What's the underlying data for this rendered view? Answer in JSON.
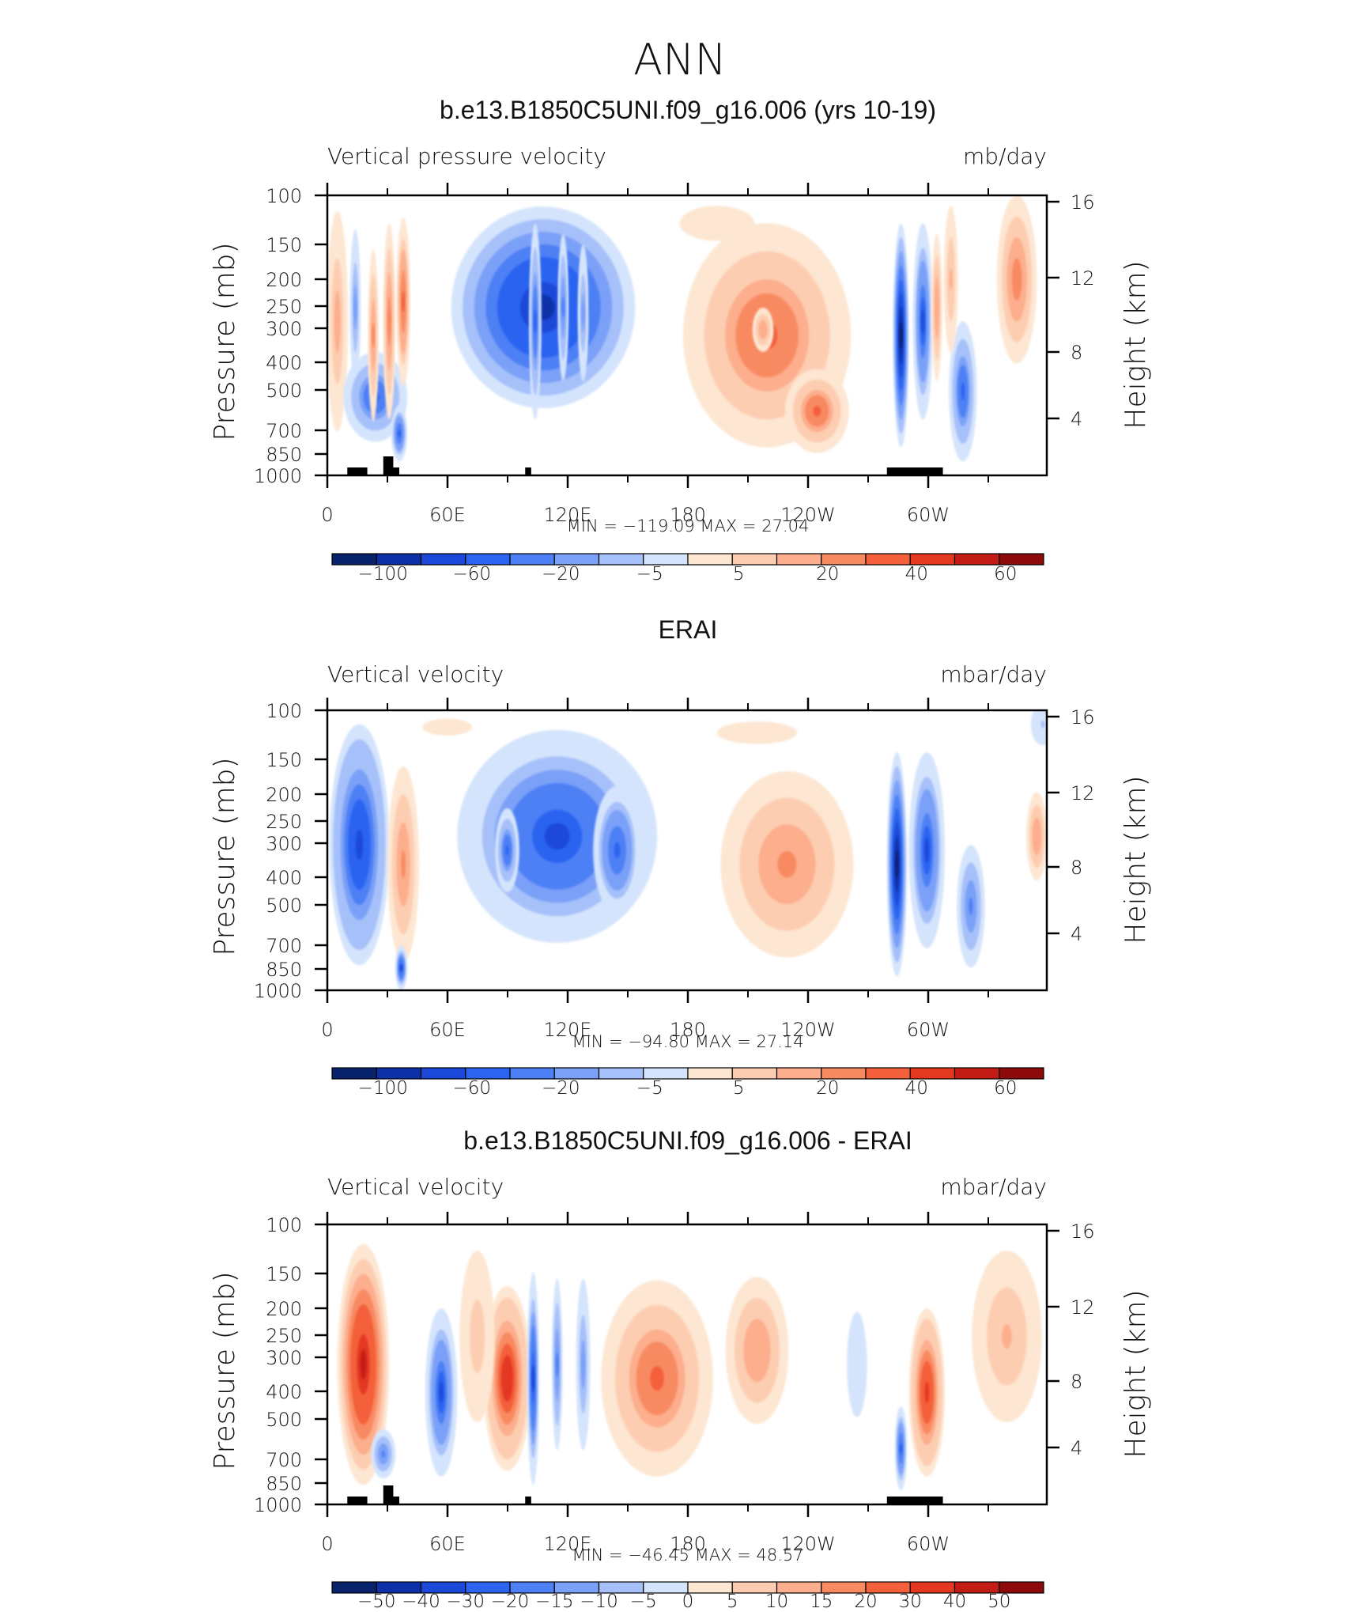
{
  "figure": {
    "title": "ANN"
  },
  "chart_data": [
    {
      "type": "heatmap",
      "title": "b.e13.B1850C5UNI.f09_g16.006 (yrs 10-19)",
      "left_label": "Vertical pressure velocity",
      "right_label": "mb/day",
      "ylabel": "Pressure (mb)",
      "ylabel_right": "Height (km)",
      "x_ticks": [
        "0",
        "60E",
        "120E",
        "180",
        "120W",
        "60W"
      ],
      "y_ticks": [
        "100",
        "150",
        "200",
        "250",
        "300",
        "400",
        "500",
        "700",
        "850",
        "1000"
      ],
      "y_ticks_right": [
        "16",
        "12",
        "8",
        "4"
      ],
      "stats": {
        "min_label": "MIN",
        "min": "−119.09",
        "max_label": "MAX",
        "max": "27.04"
      },
      "colorbar_levels": [
        "−100",
        "−60",
        "−20",
        "−5",
        "5",
        "20",
        "40",
        "60"
      ],
      "color_scale": "diverging-blue-red",
      "land_mask": [
        [
          10,
          20
        ],
        [
          28,
          36
        ],
        [
          99,
          102
        ],
        [
          280,
          308
        ]
      ],
      "features": [
        {
          "lon": 5,
          "lev": 0.45,
          "w": 6,
          "h": 0.45,
          "v": 0.35
        },
        {
          "lon": 14,
          "lev": 0.4,
          "w": 3,
          "h": 0.32,
          "v": -0.35
        },
        {
          "lon": 24,
          "lev": 0.72,
          "w": 16,
          "h": 0.16,
          "v": -0.55
        },
        {
          "lon": 23,
          "lev": 0.5,
          "w": 3,
          "h": 0.35,
          "v": 0.45
        },
        {
          "lon": 31,
          "lev": 0.45,
          "w": 3,
          "h": 0.35,
          "v": 0.5
        },
        {
          "lon": 38,
          "lev": 0.38,
          "w": 3.5,
          "h": 0.3,
          "v": 0.6
        },
        {
          "lon": 36,
          "lev": 0.85,
          "w": 4,
          "h": 0.1,
          "v": -0.6
        },
        {
          "lon": 108,
          "lev": 0.4,
          "w": 46,
          "h": 0.36,
          "v": -0.85
        },
        {
          "lon": 104,
          "lev": 0.45,
          "w": 3,
          "h": 0.35,
          "v": -0.55
        },
        {
          "lon": 118,
          "lev": 0.4,
          "w": 3,
          "h": 0.3,
          "v": -0.45
        },
        {
          "lon": 128,
          "lev": 0.42,
          "w": 3,
          "h": 0.28,
          "v": -0.35
        },
        {
          "lon": 195,
          "lev": 0.1,
          "w": 30,
          "h": 0.1,
          "v": 0.12
        },
        {
          "lon": 220,
          "lev": 0.5,
          "w": 42,
          "h": 0.4,
          "v": 0.55
        },
        {
          "lon": 218,
          "lev": 0.48,
          "w": 6,
          "h": 0.09,
          "v": 0.4
        },
        {
          "lon": 245,
          "lev": 0.77,
          "w": 16,
          "h": 0.15,
          "v": 0.55
        },
        {
          "lon": 287,
          "lev": 0.5,
          "w": 4,
          "h": 0.4,
          "v": -0.9
        },
        {
          "lon": 298,
          "lev": 0.45,
          "w": 5,
          "h": 0.35,
          "v": -0.65
        },
        {
          "lon": 305,
          "lev": 0.4,
          "w": 3,
          "h": 0.3,
          "v": 0.4
        },
        {
          "lon": 318,
          "lev": 0.7,
          "w": 7,
          "h": 0.25,
          "v": -0.55
        },
        {
          "lon": 345,
          "lev": 0.3,
          "w": 10,
          "h": 0.3,
          "v": 0.5
        },
        {
          "lon": 312,
          "lev": 0.3,
          "w": 4,
          "h": 0.3,
          "v": 0.3
        }
      ]
    },
    {
      "type": "heatmap",
      "title": "ERAI",
      "left_label": "Vertical velocity",
      "right_label": "mbar/day",
      "ylabel": "Pressure (mb)",
      "ylabel_right": "Height (km)",
      "x_ticks": [
        "0",
        "60E",
        "120E",
        "180",
        "120W",
        "60W"
      ],
      "y_ticks": [
        "100",
        "150",
        "200",
        "250",
        "300",
        "400",
        "500",
        "700",
        "850",
        "1000"
      ],
      "y_ticks_right": [
        "16",
        "12",
        "8",
        "4"
      ],
      "stats": {
        "min_label": "MIN",
        "min": "−94.80",
        "max_label": "MAX",
        "max": "27.14"
      },
      "colorbar_levels": [
        "−100",
        "−60",
        "−20",
        "−5",
        "5",
        "20",
        "40",
        "60"
      ],
      "color_scale": "diverging-blue-red",
      "land_mask": [],
      "features": [
        {
          "lon": 16,
          "lev": 0.48,
          "w": 15,
          "h": 0.43,
          "v": -0.72
        },
        {
          "lon": 38,
          "lev": 0.55,
          "w": 9,
          "h": 0.4,
          "v": 0.45
        },
        {
          "lon": 37,
          "lev": 0.92,
          "w": 3,
          "h": 0.08,
          "v": -0.7
        },
        {
          "lon": 115,
          "lev": 0.45,
          "w": 50,
          "h": 0.38,
          "v": -0.7
        },
        {
          "lon": 90,
          "lev": 0.5,
          "w": 6,
          "h": 0.15,
          "v": -0.55
        },
        {
          "lon": 145,
          "lev": 0.5,
          "w": 12,
          "h": 0.23,
          "v": -0.6
        },
        {
          "lon": 230,
          "lev": 0.55,
          "w": 38,
          "h": 0.38,
          "v": 0.45
        },
        {
          "lon": 285,
          "lev": 0.55,
          "w": 5,
          "h": 0.4,
          "v": -0.9
        },
        {
          "lon": 300,
          "lev": 0.5,
          "w": 9,
          "h": 0.35,
          "v": -0.65
        },
        {
          "lon": 322,
          "lev": 0.7,
          "w": 8,
          "h": 0.25,
          "v": -0.45
        },
        {
          "lon": 355,
          "lev": 0.45,
          "w": 6,
          "h": 0.18,
          "v": 0.4
        },
        {
          "lon": 358,
          "lev": 0.05,
          "w": 8,
          "h": 0.1,
          "v": -0.2
        },
        {
          "lon": 215,
          "lev": 0.08,
          "w": 40,
          "h": 0.08,
          "v": 0.1
        },
        {
          "lon": 60,
          "lev": 0.06,
          "w": 25,
          "h": 0.06,
          "v": 0.1
        }
      ]
    },
    {
      "type": "heatmap",
      "title": "b.e13.B1850C5UNI.f09_g16.006 - ERAI",
      "left_label": "Vertical velocity",
      "right_label": "mbar/day",
      "ylabel": "Pressure (mb)",
      "ylabel_right": "Height (km)",
      "x_ticks": [
        "0",
        "60E",
        "120E",
        "180",
        "120W",
        "60W"
      ],
      "y_ticks": [
        "100",
        "150",
        "200",
        "250",
        "300",
        "400",
        "500",
        "700",
        "850",
        "1000"
      ],
      "y_ticks_right": [
        "16",
        "12",
        "8",
        "4"
      ],
      "stats": {
        "min_label": "MIN",
        "min": "−46.45",
        "max_label": "MAX",
        "max": "48.57"
      },
      "colorbar_levels": [
        "−50",
        "−40",
        "−30",
        "−20",
        "−15",
        "−10",
        "−5",
        "0",
        "5",
        "10",
        "15",
        "20",
        "30",
        "40",
        "50"
      ],
      "color_scale": "diverging-blue-red",
      "land_mask": [
        [
          10,
          20
        ],
        [
          28,
          36
        ],
        [
          99,
          102
        ],
        [
          280,
          308
        ]
      ],
      "features": [
        {
          "lon": 18,
          "lev": 0.5,
          "w": 13,
          "h": 0.43,
          "v": 0.85
        },
        {
          "lon": 28,
          "lev": 0.82,
          "w": 7,
          "h": 0.1,
          "v": -0.45
        },
        {
          "lon": 57,
          "lev": 0.6,
          "w": 8,
          "h": 0.3,
          "v": -0.65
        },
        {
          "lon": 90,
          "lev": 0.55,
          "w": 12,
          "h": 0.33,
          "v": 0.75
        },
        {
          "lon": 103,
          "lev": 0.55,
          "w": 3,
          "h": 0.38,
          "v": -0.7
        },
        {
          "lon": 115,
          "lev": 0.5,
          "w": 3,
          "h": 0.35,
          "v": -0.45
        },
        {
          "lon": 128,
          "lev": 0.5,
          "w": 4,
          "h": 0.35,
          "v": -0.35
        },
        {
          "lon": 165,
          "lev": 0.55,
          "w": 28,
          "h": 0.35,
          "v": 0.55
        },
        {
          "lon": 215,
          "lev": 0.45,
          "w": 18,
          "h": 0.3,
          "v": 0.4
        },
        {
          "lon": 200,
          "lev": 0.6,
          "w": 10,
          "h": 0.15,
          "v": -0.05
        },
        {
          "lon": 265,
          "lev": 0.5,
          "w": 8,
          "h": 0.3,
          "v": -0.15
        },
        {
          "lon": 300,
          "lev": 0.6,
          "w": 9,
          "h": 0.3,
          "v": 0.72
        },
        {
          "lon": 287,
          "lev": 0.8,
          "w": 3,
          "h": 0.15,
          "v": -0.6
        },
        {
          "lon": 340,
          "lev": 0.4,
          "w": 20,
          "h": 0.35,
          "v": 0.3
        },
        {
          "lon": 75,
          "lev": 0.4,
          "w": 10,
          "h": 0.35,
          "v": 0.25
        }
      ]
    }
  ]
}
